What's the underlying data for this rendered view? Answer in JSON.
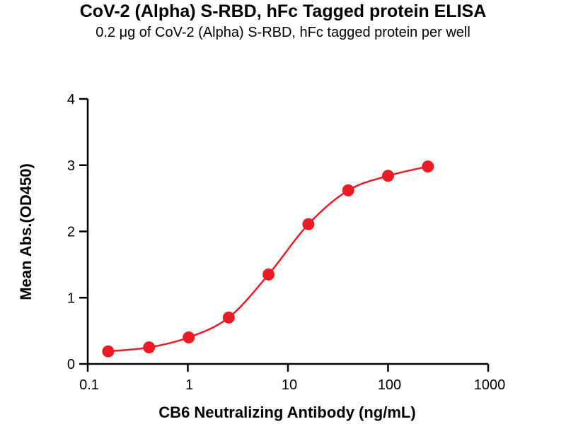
{
  "header": {
    "title": "CoV-2 (Alpha) S-RBD, hFc Tagged protein ELISA",
    "subtitle": "0.2 μg of CoV-2 (Alpha) S-RBD, hFc tagged protein per well"
  },
  "chart_data": {
    "type": "scatter",
    "title": "CoV-2 (Alpha) S-RBD, hFc Tagged protein ELISA",
    "subtitle": "0.2 μg of CoV-2 (Alpha) S-RBD, hFc tagged protein per well",
    "xlabel": "CB6 Neutralizing Antibody (ng/mL)",
    "ylabel": "Mean Abs.(OD450)",
    "x_scale": "log",
    "xlim": [
      0.1,
      1000
    ],
    "ylim": [
      0,
      4
    ],
    "x_ticks": [
      0.1,
      1,
      10,
      100,
      1000
    ],
    "x_tick_labels": [
      "0.1",
      "1",
      "10",
      "100",
      "1000"
    ],
    "y_ticks": [
      0,
      1,
      2,
      3,
      4
    ],
    "y_tick_labels": [
      "0",
      "1",
      "2",
      "3",
      "4"
    ],
    "grid": false,
    "legend": "none",
    "curve_style": "smooth sigmoid fit through points",
    "series": [
      {
        "name": "CB6 Neutralizing Antibody",
        "x": [
          0.16,
          0.41,
          1.02,
          2.56,
          6.4,
          16,
          40,
          100,
          250
        ],
        "y": [
          0.19,
          0.25,
          0.4,
          0.7,
          1.35,
          2.11,
          2.62,
          2.84,
          2.98
        ],
        "marker": "circle",
        "marker_color": "#ED1C24",
        "line_color": "#ED1C24"
      }
    ],
    "colors": {
      "axis": "#000000",
      "text": "#000000",
      "background": "#ffffff",
      "series_red": "#ED1C24"
    }
  }
}
